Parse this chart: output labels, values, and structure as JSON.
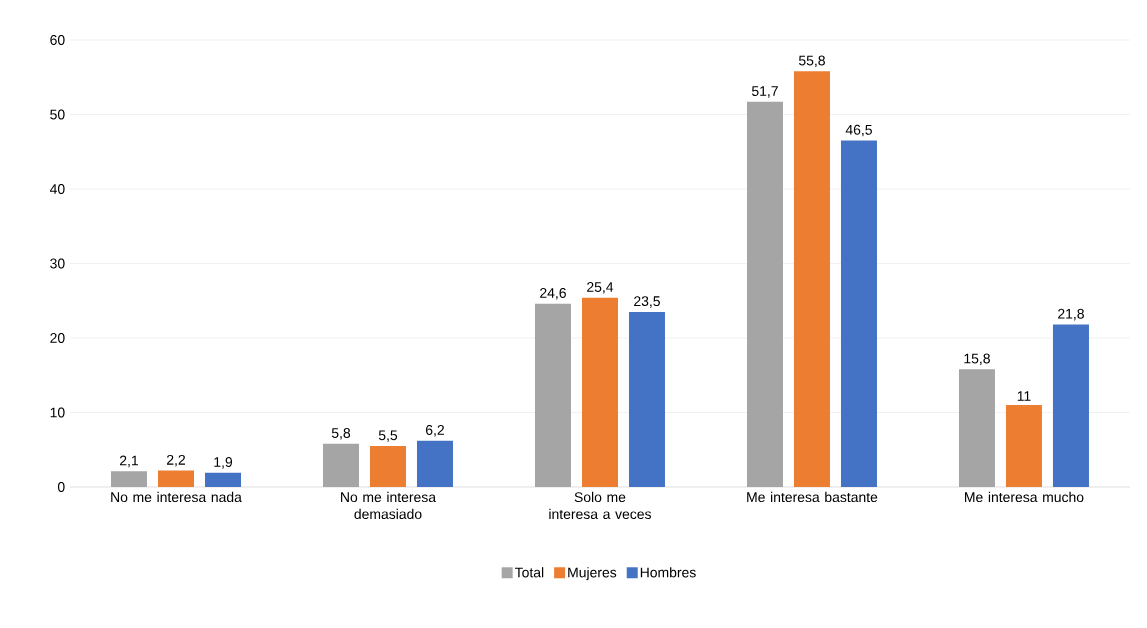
{
  "chart_data": {
    "type": "bar",
    "categories": [
      "No me interesa nada",
      "No me interesa demasiado",
      "Solo me interesa a veces",
      "Me interesa bastante",
      "Me interesa mucho"
    ],
    "series": [
      {
        "name": "Total",
        "color": "#a5a5a5",
        "values": [
          2.1,
          5.8,
          24.6,
          51.7,
          15.8
        ],
        "value_labels": [
          "2,1",
          "5,8",
          "24,6",
          "51,7",
          "15,8"
        ]
      },
      {
        "name": "Mujeres",
        "color": "#ed7d31",
        "values": [
          2.2,
          5.5,
          25.4,
          55.8,
          11
        ],
        "value_labels": [
          "2,2",
          "5,5",
          "25,4",
          "55,8",
          "11"
        ]
      },
      {
        "name": "Hombres",
        "color": "#4472c4",
        "values": [
          1.9,
          6.2,
          23.5,
          46.5,
          21.8
        ],
        "value_labels": [
          "1,9",
          "6,2",
          "23,5",
          "46,5",
          "21,8"
        ]
      }
    ],
    "ylim": [
      0,
      60
    ],
    "yticks": [
      0,
      10,
      20,
      30,
      40,
      50,
      60
    ],
    "grid": "y",
    "legend": "bottom"
  }
}
